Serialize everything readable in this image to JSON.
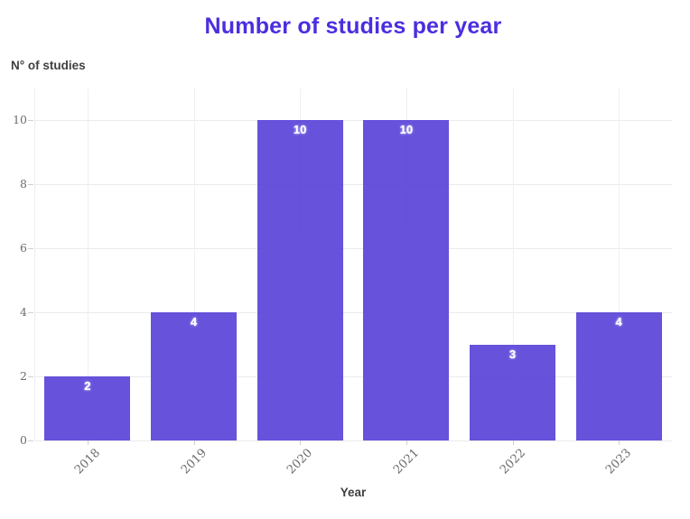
{
  "chart_data": {
    "type": "bar",
    "title": "Number of studies per year",
    "categories": [
      "2018",
      "2019",
      "2020",
      "2021",
      "2022",
      "2023"
    ],
    "values": [
      2,
      4,
      10,
      10,
      3,
      4
    ],
    "xlabel": "Year",
    "ylabel": "N° of studies",
    "yticks": [
      0,
      2,
      4,
      6,
      8,
      10
    ],
    "ylim": [
      0,
      11
    ],
    "grid": true,
    "legend": "none",
    "bar_color": "#5b45d9",
    "title_color": "#4a2ee0",
    "value_label_color": "#ffffff",
    "tick_label_color": "#6b6b6b",
    "axis_title_color": "#3f3f3f"
  }
}
